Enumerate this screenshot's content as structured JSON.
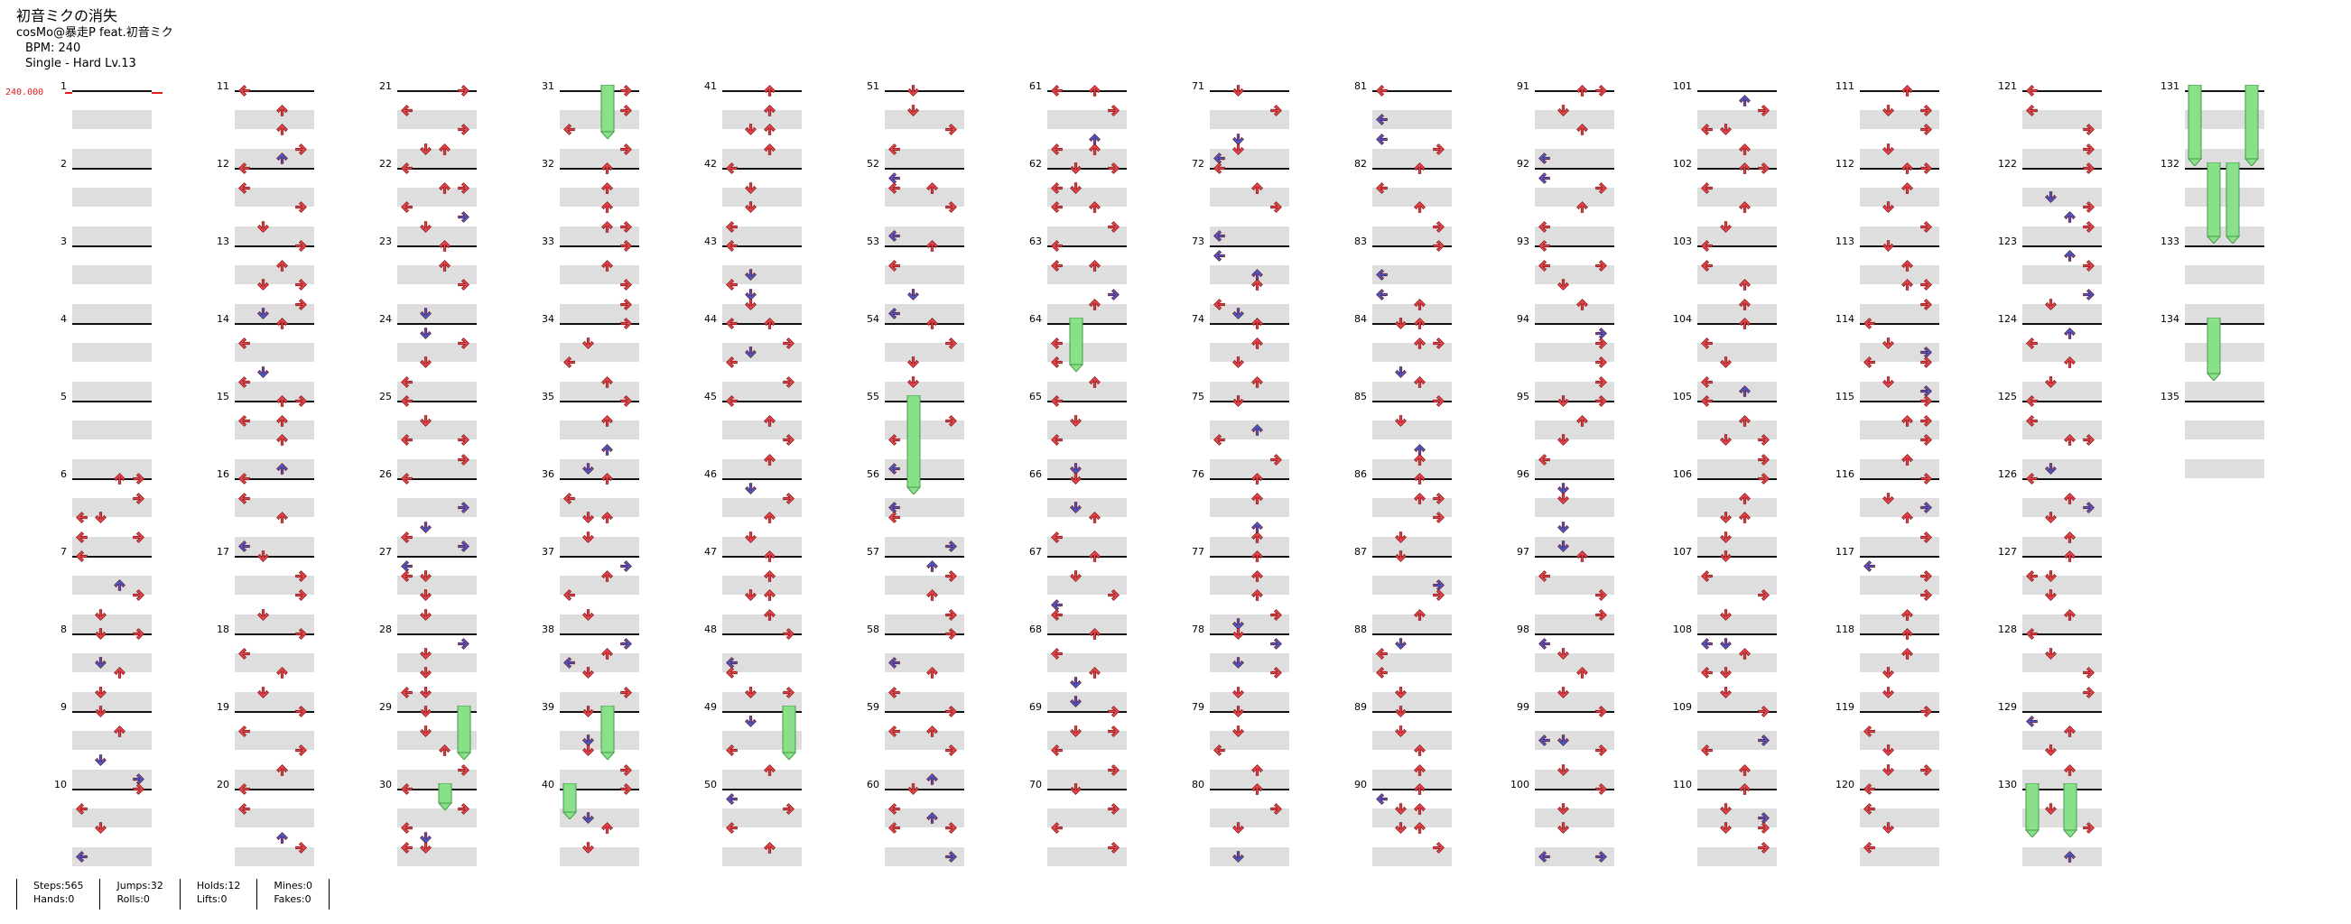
{
  "header": {
    "title": "初音ミクの消失",
    "artist": "cosMo@暴走P feat.初音ミク",
    "bpm": "BPM: 240",
    "difficulty": "Single - Hard  Lv.13"
  },
  "bpm_marker": {
    "label": "240.000"
  },
  "colors": {
    "left": "#e8434b",
    "down": "#e8434b",
    "up": "#e8434b",
    "right": "#e8434b",
    "blue": "#3f5bd6",
    "hold": "#88e088",
    "measure_line": "#111111",
    "grey_row": "#dedede"
  },
  "chart": {
    "measures": 135,
    "measures_per_column": 10,
    "last_measure_labels": [
      "131",
      "132",
      "133",
      "134",
      "135"
    ]
  },
  "measure_labels": [
    "1",
    "2",
    "3",
    "4",
    "5",
    "6",
    "7",
    "8",
    "9",
    "10",
    "11",
    "12",
    "13",
    "14",
    "15",
    "16",
    "17",
    "18",
    "19",
    "20",
    "21",
    "22",
    "23",
    "24",
    "25",
    "26",
    "27",
    "28",
    "29",
    "30",
    "31",
    "32",
    "33",
    "34",
    "35",
    "36",
    "37",
    "38",
    "39",
    "40",
    "41",
    "42",
    "43",
    "44",
    "45",
    "46",
    "47",
    "48",
    "49",
    "50",
    "51",
    "52",
    "53",
    "54",
    "55",
    "56",
    "57",
    "58",
    "59",
    "60",
    "61",
    "62",
    "63",
    "64",
    "65",
    "66",
    "67",
    "68",
    "69",
    "70",
    "71",
    "72",
    "73",
    "74",
    "75",
    "76",
    "77",
    "78",
    "79",
    "80",
    "81",
    "82",
    "83",
    "84",
    "85",
    "86",
    "87",
    "88",
    "89",
    "90",
    "91",
    "92",
    "93",
    "94",
    "95",
    "96",
    "97",
    "98",
    "99",
    "100",
    "101",
    "102",
    "103",
    "104",
    "105",
    "106",
    "107",
    "108",
    "109",
    "110",
    "111",
    "112",
    "113",
    "114",
    "115",
    "116",
    "117",
    "118",
    "119",
    "120",
    "121",
    "122",
    "123",
    "124",
    "125",
    "126",
    "127",
    "128",
    "129",
    "130",
    "131",
    "132",
    "133",
    "134",
    "135"
  ],
  "stats": {
    "steps": "Steps:565",
    "hands": "Hands:0",
    "jumps": "Jumps:32",
    "rolls": "Rolls:0",
    "holds": "Holds:12",
    "lifts": "Lifts:0",
    "mines": "Mines:0",
    "fakes": "Fakes:0"
  }
}
